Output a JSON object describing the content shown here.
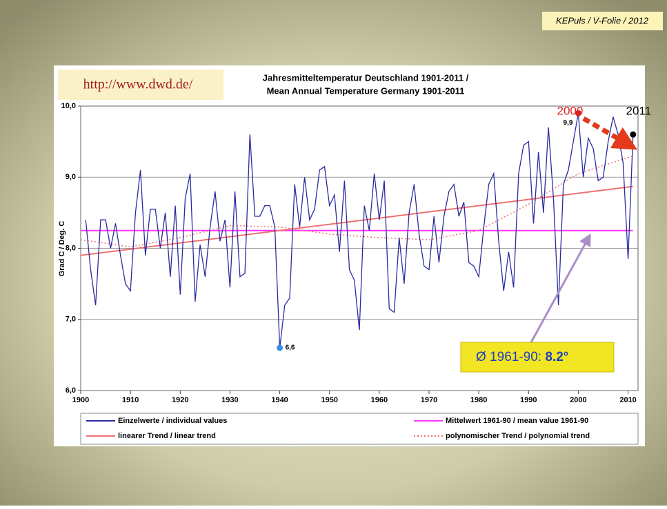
{
  "source_tag": "KEPuls / V-Folie / 2012",
  "chart_data": {
    "type": "line",
    "url": "http://www.dwd.de/",
    "title": "Jahresmitteltemperatur Deutschland  1901-2011 /",
    "subtitle": "Mean Annual Temperature Germany  1901-2011",
    "y_label": "Grad C / Deg. C",
    "xlim": [
      1900,
      2012
    ],
    "ylim": [
      6.0,
      10.0
    ],
    "xticks": [
      1900,
      1910,
      1920,
      1930,
      1940,
      1950,
      1960,
      1970,
      1980,
      1990,
      2000,
      2010
    ],
    "yticks": [
      {
        "value": 6.0,
        "label": "6,0"
      },
      {
        "value": 7.0,
        "label": "7,0"
      },
      {
        "value": 8.0,
        "label": "8,0"
      },
      {
        "value": 9.0,
        "label": "9,0"
      },
      {
        "value": 10.0,
        "label": "10,0"
      }
    ],
    "grid": true,
    "series": [
      {
        "name": "Einzelwerte / individual values",
        "color": "#2a2aa0",
        "style": "solid",
        "x": [
          1901,
          1902,
          1903,
          1904,
          1905,
          1906,
          1907,
          1908,
          1909,
          1910,
          1911,
          1912,
          1913,
          1914,
          1915,
          1916,
          1917,
          1918,
          1919,
          1920,
          1921,
          1922,
          1923,
          1924,
          1925,
          1926,
          1927,
          1928,
          1929,
          1930,
          1931,
          1932,
          1933,
          1934,
          1935,
          1936,
          1937,
          1938,
          1939,
          1940,
          1941,
          1942,
          1943,
          1944,
          1945,
          1946,
          1947,
          1948,
          1949,
          1950,
          1951,
          1952,
          1953,
          1954,
          1955,
          1956,
          1957,
          1958,
          1959,
          1960,
          1961,
          1962,
          1963,
          1964,
          1965,
          1966,
          1967,
          1968,
          1969,
          1970,
          1971,
          1972,
          1973,
          1974,
          1975,
          1976,
          1977,
          1978,
          1979,
          1980,
          1981,
          1982,
          1983,
          1984,
          1985,
          1986,
          1987,
          1988,
          1989,
          1990,
          1991,
          1992,
          1993,
          1994,
          1995,
          1996,
          1997,
          1998,
          1999,
          2000,
          2001,
          2002,
          2003,
          2004,
          2005,
          2006,
          2007,
          2008,
          2009,
          2010,
          2011
        ],
        "values": [
          8.4,
          7.7,
          7.2,
          8.4,
          8.4,
          8.0,
          8.35,
          7.9,
          7.5,
          7.4,
          8.5,
          9.1,
          7.9,
          8.55,
          8.55,
          8.0,
          8.5,
          7.6,
          8.6,
          7.35,
          8.7,
          9.05,
          7.25,
          8.05,
          7.6,
          8.3,
          8.8,
          8.1,
          8.4,
          7.45,
          8.8,
          7.6,
          7.65,
          9.6,
          8.45,
          8.45,
          8.6,
          8.6,
          8.3,
          6.6,
          7.2,
          7.3,
          8.9,
          8.3,
          9.0,
          8.4,
          8.55,
          9.1,
          9.15,
          8.6,
          8.75,
          7.95,
          8.95,
          7.7,
          7.55,
          6.85,
          8.6,
          8.25,
          9.05,
          8.4,
          8.95,
          7.15,
          7.1,
          8.15,
          7.5,
          8.5,
          8.9,
          8.2,
          7.75,
          7.7,
          8.45,
          7.8,
          8.45,
          8.8,
          8.9,
          8.45,
          8.65,
          7.8,
          7.75,
          7.6,
          8.3,
          8.9,
          9.05,
          8.1,
          7.4,
          7.95,
          7.45,
          9.05,
          9.45,
          9.5,
          8.35,
          9.35,
          8.5,
          9.7,
          8.7,
          7.2,
          8.9,
          9.1,
          9.5,
          9.9,
          9.0,
          9.55,
          9.4,
          8.95,
          9.0,
          9.5,
          9.85,
          9.6,
          9.2,
          7.85,
          9.6
        ],
        "value_labels": [
          null,
          null,
          null,
          null,
          null,
          null,
          null,
          null,
          null,
          null,
          null,
          null,
          null,
          null,
          null,
          null,
          null,
          null,
          null,
          null,
          null,
          null,
          null,
          null,
          null,
          null,
          null,
          null,
          null,
          null,
          null,
          null,
          null,
          null,
          null,
          null,
          null,
          null,
          null,
          "6,6",
          null,
          null,
          null,
          null,
          null,
          null,
          null,
          null,
          null,
          null,
          null,
          null,
          null,
          null,
          null,
          null,
          null,
          null,
          null,
          null,
          null,
          null,
          null,
          null,
          null,
          null,
          null,
          null,
          null,
          null,
          null,
          null,
          null,
          null,
          null,
          null,
          null,
          null,
          null,
          null,
          null,
          null,
          null,
          null,
          null,
          null,
          null,
          null,
          null,
          null,
          null,
          null,
          null,
          null,
          null,
          null,
          null,
          null,
          null,
          "9,9",
          null,
          null,
          null,
          null,
          null,
          null,
          null,
          null,
          null,
          null,
          "9,6"
        ]
      },
      {
        "name": "Mittelwert 1961-90 / mean value 1961-90",
        "color": "#ff33ff",
        "style": "solid",
        "x": [
          1900,
          2011
        ],
        "values": [
          8.25,
          8.25
        ]
      },
      {
        "name": "linearer Trend / linear trend",
        "color": "#f07070",
        "style": "solid",
        "x": [
          1900,
          2011
        ],
        "values": [
          7.9,
          8.87
        ]
      },
      {
        "name": "polynomischer Trend / polynomial trend",
        "color": "#f07070",
        "style": "dotted",
        "x": [
          1900,
          1910,
          1920,
          1930,
          1940,
          1950,
          1960,
          1970,
          1980,
          1990,
          2000,
          2011
        ],
        "values": [
          8.12,
          8.02,
          8.15,
          8.32,
          8.3,
          8.2,
          8.15,
          8.12,
          8.25,
          8.62,
          9.05,
          9.3
        ]
      }
    ],
    "highlights": [
      {
        "x": 1940,
        "color": "#3b8fe8"
      },
      {
        "x": 2000,
        "color": "#e02020",
        "label": "2000"
      },
      {
        "x": 2011,
        "color": "#000000",
        "label": "2011"
      }
    ],
    "callout": {
      "text": "Ø 1961-90: ",
      "value": "8.2°"
    }
  }
}
